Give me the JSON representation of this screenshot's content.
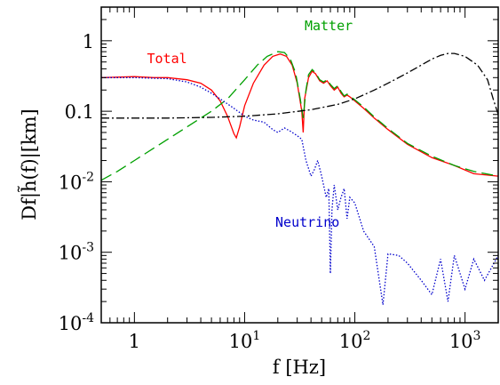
{
  "chart_data": {
    "type": "line",
    "title": "",
    "xlabel": "f  [Hz]",
    "ylabel": "Df|h̃(f)|[km]",
    "x_scale": "log",
    "y_scale": "log",
    "xlim": [
      0.5,
      2000
    ],
    "ylim": [
      0.0001,
      3
    ],
    "grid": false,
    "x_ticks": [
      {
        "value": 1,
        "label": "1"
      },
      {
        "value": 10,
        "label": "10",
        "exp": "1"
      },
      {
        "value": 100,
        "label": "10",
        "exp": "2"
      },
      {
        "value": 1000,
        "label": "10",
        "exp": "3"
      }
    ],
    "y_ticks": [
      {
        "value": 0.0001,
        "label": "10",
        "exp": "-4"
      },
      {
        "value": 0.001,
        "label": "10",
        "exp": "-3"
      },
      {
        "value": 0.01,
        "label": "10",
        "exp": "-2"
      },
      {
        "value": 0.1,
        "label": "0.1"
      },
      {
        "value": 1,
        "label": "1"
      }
    ],
    "series": [
      {
        "name": "Total",
        "color": "#ff0000",
        "style": "solid",
        "label_at": [
          1.3,
          0.48
        ],
        "points": [
          [
            0.5,
            0.3
          ],
          [
            1,
            0.31
          ],
          [
            1.5,
            0.3
          ],
          [
            2,
            0.3
          ],
          [
            3,
            0.28
          ],
          [
            4,
            0.25
          ],
          [
            5,
            0.2
          ],
          [
            6,
            0.14
          ],
          [
            7,
            0.085
          ],
          [
            8,
            0.048
          ],
          [
            8.4,
            0.042
          ],
          [
            9,
            0.06
          ],
          [
            10,
            0.12
          ],
          [
            12,
            0.25
          ],
          [
            15,
            0.45
          ],
          [
            18,
            0.6
          ],
          [
            21,
            0.65
          ],
          [
            24,
            0.6
          ],
          [
            27,
            0.45
          ],
          [
            30,
            0.25
          ],
          [
            33,
            0.1
          ],
          [
            34,
            0.05
          ],
          [
            35,
            0.15
          ],
          [
            38,
            0.3
          ],
          [
            41,
            0.37
          ],
          [
            44,
            0.34
          ],
          [
            48,
            0.27
          ],
          [
            52,
            0.25
          ],
          [
            56,
            0.27
          ],
          [
            60,
            0.23
          ],
          [
            65,
            0.2
          ],
          [
            70,
            0.22
          ],
          [
            75,
            0.18
          ],
          [
            80,
            0.16
          ],
          [
            85,
            0.17
          ],
          [
            90,
            0.16
          ],
          [
            100,
            0.14
          ],
          [
            120,
            0.11
          ],
          [
            150,
            0.08
          ],
          [
            200,
            0.055
          ],
          [
            300,
            0.034
          ],
          [
            500,
            0.022
          ],
          [
            800,
            0.017
          ],
          [
            1200,
            0.013
          ],
          [
            2000,
            0.012
          ]
        ]
      },
      {
        "name": "Matter",
        "color": "#00a000",
        "style": "dashed",
        "label_at": [
          35,
          1.4
        ],
        "points": [
          [
            0.5,
            0.0105
          ],
          [
            0.7,
            0.014
          ],
          [
            1,
            0.02
          ],
          [
            1.5,
            0.03
          ],
          [
            2,
            0.04
          ],
          [
            3,
            0.06
          ],
          [
            5,
            0.1
          ],
          [
            7,
            0.15
          ],
          [
            10,
            0.28
          ],
          [
            13,
            0.45
          ],
          [
            16,
            0.6
          ],
          [
            20,
            0.7
          ],
          [
            23,
            0.68
          ],
          [
            26,
            0.55
          ],
          [
            29,
            0.35
          ],
          [
            32,
            0.15
          ],
          [
            34,
            0.08
          ],
          [
            36,
            0.2
          ],
          [
            38,
            0.33
          ],
          [
            41,
            0.39
          ],
          [
            44,
            0.35
          ],
          [
            48,
            0.28
          ],
          [
            52,
            0.26
          ],
          [
            56,
            0.28
          ],
          [
            60,
            0.24
          ],
          [
            65,
            0.21
          ],
          [
            70,
            0.23
          ],
          [
            75,
            0.19
          ],
          [
            80,
            0.165
          ],
          [
            85,
            0.175
          ],
          [
            90,
            0.165
          ],
          [
            100,
            0.145
          ],
          [
            120,
            0.115
          ],
          [
            150,
            0.083
          ],
          [
            200,
            0.057
          ],
          [
            300,
            0.035
          ],
          [
            500,
            0.023
          ],
          [
            800,
            0.017
          ],
          [
            1200,
            0.014
          ],
          [
            2000,
            0.012
          ]
        ]
      },
      {
        "name": "Neutrino",
        "color": "#0000cc",
        "style": "dotted",
        "label_at": [
          19,
          0.0023
        ],
        "points": [
          [
            0.5,
            0.3
          ],
          [
            1,
            0.3
          ],
          [
            2,
            0.29
          ],
          [
            3,
            0.26
          ],
          [
            4,
            0.22
          ],
          [
            5,
            0.18
          ],
          [
            6,
            0.15
          ],
          [
            8,
            0.11
          ],
          [
            10,
            0.085
          ],
          [
            12,
            0.075
          ],
          [
            15,
            0.07
          ],
          [
            18,
            0.055
          ],
          [
            20,
            0.05
          ],
          [
            23,
            0.058
          ],
          [
            26,
            0.052
          ],
          [
            30,
            0.045
          ],
          [
            33,
            0.04
          ],
          [
            36,
            0.02
          ],
          [
            40,
            0.012
          ],
          [
            43,
            0.015
          ],
          [
            46,
            0.02
          ],
          [
            50,
            0.012
          ],
          [
            55,
            0.006
          ],
          [
            58,
            0.008
          ],
          [
            60,
            0.0005
          ],
          [
            62,
            0.004
          ],
          [
            65,
            0.009
          ],
          [
            70,
            0.004
          ],
          [
            75,
            0.006
          ],
          [
            80,
            0.008
          ],
          [
            85,
            0.003
          ],
          [
            90,
            0.006
          ],
          [
            100,
            0.005
          ],
          [
            120,
            0.002
          ],
          [
            150,
            0.0012
          ],
          [
            180,
            0.00018
          ],
          [
            200,
            0.00095
          ],
          [
            250,
            0.0009
          ],
          [
            300,
            0.0007
          ],
          [
            400,
            0.0004
          ],
          [
            500,
            0.00025
          ],
          [
            600,
            0.0008
          ],
          [
            700,
            0.0002
          ],
          [
            800,
            0.0009
          ],
          [
            1000,
            0.0003
          ],
          [
            1200,
            0.0008
          ],
          [
            1500,
            0.0004
          ],
          [
            2000,
            0.0009
          ]
        ]
      },
      {
        "name": "",
        "color": "#000000",
        "style": "dashdot",
        "points": [
          [
            0.5,
            0.08
          ],
          [
            1,
            0.08
          ],
          [
            2,
            0.08
          ],
          [
            5,
            0.082
          ],
          [
            10,
            0.085
          ],
          [
            20,
            0.092
          ],
          [
            40,
            0.105
          ],
          [
            70,
            0.125
          ],
          [
            100,
            0.15
          ],
          [
            150,
            0.2
          ],
          [
            200,
            0.25
          ],
          [
            300,
            0.35
          ],
          [
            400,
            0.45
          ],
          [
            500,
            0.55
          ],
          [
            600,
            0.62
          ],
          [
            700,
            0.66
          ],
          [
            800,
            0.66
          ],
          [
            1000,
            0.6
          ],
          [
            1300,
            0.45
          ],
          [
            1600,
            0.28
          ],
          [
            1800,
            0.15
          ],
          [
            2000,
            0.09
          ]
        ]
      }
    ]
  }
}
